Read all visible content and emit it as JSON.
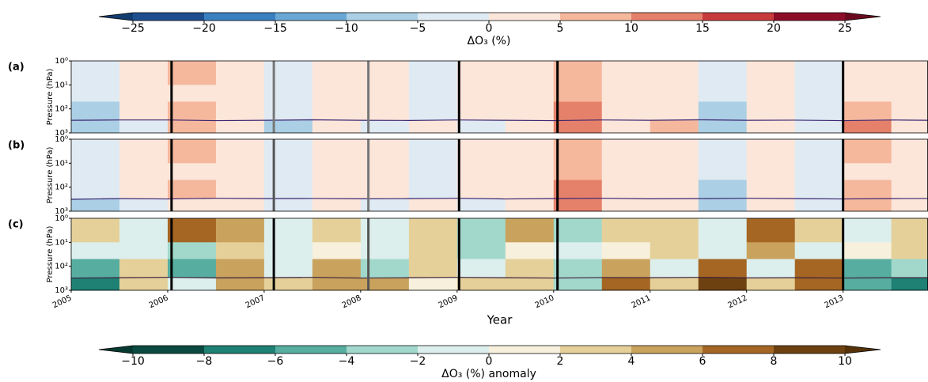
{
  "chart_data": [
    {
      "type": "colorbar",
      "label": "ΔO₃ (%)",
      "bounds": [
        -25,
        -20,
        -15,
        -10,
        -5,
        0,
        5,
        10,
        15,
        20,
        25
      ],
      "colors": [
        "#1d4f8f",
        "#3a7fc0",
        "#6ba7d4",
        "#abcfe5",
        "#dfeaf3",
        "#fce6da",
        "#f6b89d",
        "#e5816a",
        "#c73b3d",
        "#8c0d27"
      ],
      "extend_colors": [
        "#123b6e",
        "#6b0a1f"
      ],
      "ticks": [
        {
          "value": -25,
          "label": "−25"
        },
        {
          "value": -20,
          "label": "−20"
        },
        {
          "value": -15,
          "label": "−15"
        },
        {
          "value": -10,
          "label": "−10"
        },
        {
          "value": -5,
          "label": "−5"
        },
        0,
        5,
        10,
        15,
        20,
        25
      ]
    },
    {
      "type": "heatmap",
      "panel": "(a)",
      "ylabel": "Pressure (hPa)",
      "log_y": true,
      "xlim": [
        2005,
        2013.88
      ],
      "ylim": [
        1000,
        1
      ],
      "yticks": [
        {
          "value": 1,
          "label": "10⁰"
        },
        {
          "value": 10,
          "label": "10¹"
        },
        {
          "value": 100,
          "label": "10²"
        },
        {
          "value": 1000,
          "label": "10³"
        }
      ],
      "x_edges": [
        2005,
        2005.5,
        2006,
        2006.5,
        2007,
        2007.5,
        2008,
        2008.5,
        2009,
        2009.5,
        2010,
        2010.5,
        2011,
        2011.5,
        2012,
        2012.5,
        2013,
        2013.5,
        2014
      ],
      "y_edges": [
        1,
        10,
        50,
        300,
        1000
      ],
      "z": [
        [
          -4,
          2,
          6,
          3,
          -3,
          3,
          2,
          -2,
          3,
          2,
          8,
          3,
          2,
          -4,
          3,
          -2,
          3,
          2
        ],
        [
          -3,
          1,
          4,
          2,
          -2,
          2,
          1,
          -1,
          2,
          1,
          6,
          2,
          1,
          -3,
          2,
          -1,
          4,
          1
        ],
        [
          -6,
          2,
          8,
          2,
          -3,
          3,
          2,
          -2,
          3,
          2,
          12,
          4,
          4,
          -8,
          3,
          -2,
          7,
          4
        ],
        [
          -8,
          -2,
          6,
          0,
          -6,
          0,
          -4,
          0,
          -4,
          0,
          14,
          0,
          6,
          -10,
          0,
          -3,
          10,
          4
        ]
      ],
      "tropopause": {
        "color": "#3a2470",
        "x": [
          2005,
          2005.5,
          2006,
          2006.5,
          2007,
          2007.5,
          2008,
          2008.5,
          2009,
          2009.5,
          2010,
          2010.5,
          2011,
          2011.5,
          2012,
          2012.5,
          2013,
          2013.5,
          2013.88
        ],
        "values": [
          300,
          290,
          290,
          310,
          300,
          285,
          300,
          305,
          290,
          300,
          310,
          290,
          300,
          285,
          300,
          295,
          310,
          290,
          300
        ]
      },
      "vlines": {
        "x": [
          2006.04,
          2007.1,
          2008.08,
          2009.02,
          2010.04,
          2013.0
        ],
        "colors": [
          "#000000",
          "#777777",
          "#777777",
          "#000000",
          "#000000",
          "#000000"
        ]
      }
    },
    {
      "type": "heatmap",
      "panel": "(b)",
      "ylabel": "Pressure (hPa)",
      "log_y": true,
      "xlim": [
        2005,
        2013.88
      ],
      "ylim": [
        1000,
        1
      ],
      "yticks": [
        {
          "value": 1,
          "label": "10⁰"
        },
        {
          "value": 10,
          "label": "10¹"
        },
        {
          "value": 100,
          "label": "10²"
        },
        {
          "value": 1000,
          "label": "10³"
        }
      ],
      "x_edges": [
        2005,
        2005.5,
        2006,
        2006.5,
        2007,
        2007.5,
        2008,
        2008.5,
        2009,
        2009.5,
        2010,
        2010.5,
        2011,
        2011.5,
        2012,
        2012.5,
        2013,
        2013.5,
        2014
      ],
      "y_edges": [
        1,
        10,
        50,
        300,
        1000
      ],
      "z": [
        [
          -3,
          2,
          8,
          3,
          -2,
          3,
          2,
          -2,
          3,
          2,
          9,
          3,
          2,
          -4,
          3,
          -2,
          6,
          2
        ],
        [
          -2,
          1,
          4,
          2,
          -2,
          2,
          1,
          -1,
          2,
          1,
          6,
          2,
          1,
          -3,
          2,
          -1,
          4,
          2
        ],
        [
          -4,
          2,
          7,
          3,
          -3,
          3,
          2,
          -3,
          3,
          2,
          10,
          3,
          3,
          -8,
          3,
          -2,
          8,
          3
        ],
        [
          -9,
          -3,
          4,
          0,
          -5,
          0,
          -4,
          0,
          -4,
          0,
          12,
          0,
          3,
          -9,
          0,
          -2,
          9,
          3
        ]
      ],
      "tropopause": {
        "color": "#3a2470",
        "x": [
          2005,
          2005.5,
          2006,
          2006.5,
          2007,
          2007.5,
          2008,
          2008.5,
          2009,
          2009.5,
          2010,
          2010.5,
          2011,
          2011.5,
          2012,
          2012.5,
          2013,
          2013.5,
          2013.88
        ],
        "values": [
          320,
          300,
          310,
          290,
          300,
          295,
          305,
          300,
          290,
          310,
          300,
          290,
          305,
          300,
          290,
          300,
          310,
          300,
          295
        ]
      },
      "vlines": {
        "x": [
          2006.04,
          2007.1,
          2008.08,
          2009.02,
          2010.04,
          2013.0
        ],
        "colors": [
          "#000000",
          "#555555",
          "#777777",
          "#000000",
          "#000000",
          "#000000"
        ]
      }
    },
    {
      "type": "heatmap",
      "panel": "(c)",
      "ylabel": "Pressure (hPa)",
      "log_y": true,
      "xlabel": "Year",
      "xlim": [
        2005,
        2013.88
      ],
      "ylim": [
        1000,
        1
      ],
      "xticks": [
        2005,
        2006,
        2007,
        2008,
        2009,
        2010,
        2011,
        2012,
        2013
      ],
      "yticks": [
        {
          "value": 1,
          "label": "10⁰"
        },
        {
          "value": 10,
          "label": "10¹"
        },
        {
          "value": 100,
          "label": "10²"
        },
        {
          "value": 1000,
          "label": "10³"
        }
      ],
      "x_edges": [
        2005,
        2005.5,
        2006,
        2006.5,
        2007,
        2007.5,
        2008,
        2008.5,
        2009,
        2009.5,
        2010,
        2010.5,
        2011,
        2011.5,
        2012,
        2012.5,
        2013,
        2013.5,
        2014
      ],
      "y_edges": [
        1,
        10,
        50,
        300,
        1000
      ],
      "z": [
        [
          2,
          -2,
          6,
          4,
          -1,
          3,
          -2,
          2,
          -3,
          4,
          -4,
          3,
          2,
          -1,
          6,
          3,
          -2,
          2
        ],
        [
          -2,
          -1,
          -4,
          2,
          -2,
          1,
          -1,
          2,
          -3,
          1,
          -2,
          0,
          3,
          -2,
          4,
          -2,
          1,
          2
        ],
        [
          -6,
          2,
          -5,
          4,
          -2,
          4,
          -3,
          3,
          -2,
          2,
          -4,
          4,
          -2,
          6,
          -1,
          7,
          -5,
          -4
        ],
        [
          -8,
          3,
          -2,
          5,
          2,
          4,
          4,
          1,
          3,
          2,
          -3,
          6,
          2,
          8,
          3,
          6,
          -6,
          -7
        ]
      ],
      "tropopause": {
        "color": "#3a1f3a",
        "x": [
          2005,
          2005.5,
          2006,
          2006.5,
          2007,
          2007.5,
          2008,
          2008.5,
          2009,
          2009.5,
          2010,
          2010.5,
          2011,
          2011.5,
          2012,
          2012.5,
          2013,
          2013.5,
          2013.88
        ],
        "values": [
          310,
          300,
          290,
          305,
          300,
          290,
          310,
          300,
          290,
          300,
          310,
          295,
          300,
          290,
          305,
          300,
          310,
          300,
          300
        ]
      },
      "vlines": {
        "x": [
          2006.04,
          2007.1,
          2008.08,
          2009.02,
          2010.04,
          2013.0
        ],
        "colors": [
          "#000000",
          "#000000",
          "#555555",
          "#000000",
          "#000000",
          "#000000"
        ]
      }
    },
    {
      "type": "colorbar",
      "label": "ΔO₃ (%) anomaly",
      "bounds": [
        -10,
        -8,
        -6,
        -4,
        -2,
        0,
        2,
        4,
        6,
        8,
        10
      ],
      "colors": [
        "#0b4a40",
        "#1f8074",
        "#57ada0",
        "#a2d8cc",
        "#dcefed",
        "#f7f0dc",
        "#e5d09a",
        "#c9a25e",
        "#a56624",
        "#6e4110"
      ],
      "extend_colors": [
        "#063a31",
        "#553209"
      ],
      "ticks": [
        {
          "value": -10,
          "label": "−10"
        },
        {
          "value": -8,
          "label": "−8"
        },
        {
          "value": -6,
          "label": "−6"
        },
        {
          "value": -4,
          "label": "−4"
        },
        {
          "value": -2,
          "label": "−2"
        },
        0,
        2,
        4,
        6,
        8,
        10
      ]
    }
  ]
}
